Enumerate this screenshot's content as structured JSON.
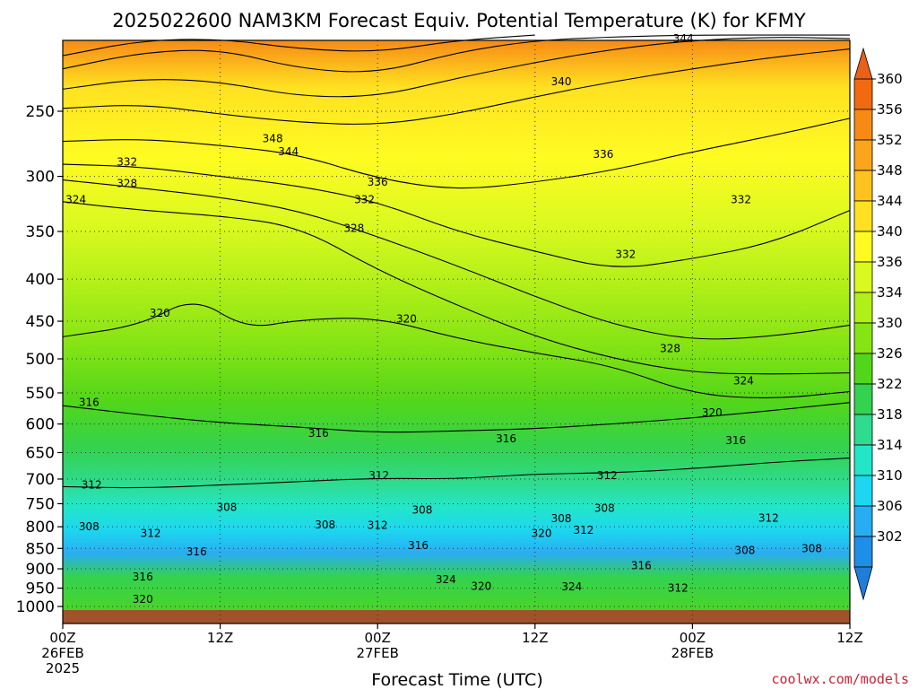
{
  "chart_data": {
    "type": "heatmap",
    "title": "2025022600 NAM3KM Forecast Equiv. Potential Temperature (K) for KFMY",
    "xlabel": "Forecast Time (UTC)",
    "ylabel": "",
    "x_unit": "hours since 00Z 26FEB 2025",
    "xlim": [
      0,
      60
    ],
    "ylim": [
      1030,
      200
    ],
    "y_scale": "log-pressure",
    "grid": true,
    "y_ticks": [
      {
        "value": 250,
        "label": "250"
      },
      {
        "value": 300,
        "label": "300"
      },
      {
        "value": 350,
        "label": "350"
      },
      {
        "value": 400,
        "label": "400"
      },
      {
        "value": 450,
        "label": "450"
      },
      {
        "value": 500,
        "label": "500"
      },
      {
        "value": 550,
        "label": "550"
      },
      {
        "value": 600,
        "label": "600"
      },
      {
        "value": 650,
        "label": "650"
      },
      {
        "value": 700,
        "label": "700"
      },
      {
        "value": 750,
        "label": "750"
      },
      {
        "value": 800,
        "label": "800"
      },
      {
        "value": 850,
        "label": "850"
      },
      {
        "value": 900,
        "label": "900"
      },
      {
        "value": 950,
        "label": "950"
      },
      {
        "value": 1000,
        "label": "1000"
      }
    ],
    "x_ticks": [
      {
        "hour": 0,
        "lines": [
          "00Z",
          "26FEB",
          "2025"
        ]
      },
      {
        "hour": 12,
        "lines": [
          "12Z"
        ]
      },
      {
        "hour": 24,
        "lines": [
          "00Z",
          "27FEB"
        ]
      },
      {
        "hour": 36,
        "lines": [
          "12Z"
        ]
      },
      {
        "hour": 48,
        "lines": [
          "00Z",
          "28FEB"
        ]
      },
      {
        "hour": 60,
        "lines": [
          "12Z"
        ]
      }
    ],
    "colorbar": {
      "labels": [
        "360",
        "356",
        "352",
        "348",
        "344",
        "340",
        "336",
        "334",
        "330",
        "326",
        "322",
        "318",
        "314",
        "310",
        "306",
        "302"
      ],
      "colors": [
        "#f26a10",
        "#f78a15",
        "#fba51c",
        "#ffc21f",
        "#ffe121",
        "#fffb22",
        "#d9f91f",
        "#b1ef18",
        "#86e414",
        "#52d61a",
        "#33d24f",
        "#2fdb8e",
        "#23e6c8",
        "#1cd7ef",
        "#29adf2",
        "#1e8fe8"
      ],
      "top_arrow_color": "#e8601a",
      "bottom_arrow_color": "#1e7fdb"
    },
    "ground_color": "#a0522d",
    "contour_series": [
      {
        "level": 312,
        "points": [
          [
            0,
            715
          ],
          [
            6,
            718
          ],
          [
            12,
            712
          ],
          [
            18,
            705
          ],
          [
            24,
            698
          ],
          [
            30,
            700
          ],
          [
            36,
            690
          ],
          [
            42,
            688
          ],
          [
            48,
            680
          ],
          [
            54,
            668
          ],
          [
            60,
            660
          ]
        ]
      },
      {
        "level": 316,
        "points": [
          [
            0,
            570
          ],
          [
            6,
            585
          ],
          [
            12,
            598
          ],
          [
            18,
            605
          ],
          [
            24,
            615
          ],
          [
            30,
            612
          ],
          [
            36,
            608
          ],
          [
            42,
            600
          ],
          [
            48,
            590
          ],
          [
            54,
            578
          ],
          [
            60,
            565
          ]
        ]
      },
      {
        "level": 320,
        "points": [
          [
            0,
            470
          ],
          [
            6,
            455
          ],
          [
            10,
            420
          ],
          [
            14,
            460
          ],
          [
            18,
            448
          ],
          [
            24,
            445
          ],
          [
            30,
            472
          ],
          [
            36,
            492
          ],
          [
            42,
            510
          ],
          [
            48,
            552
          ],
          [
            54,
            560
          ],
          [
            60,
            548
          ]
        ]
      },
      {
        "level": 324,
        "points": [
          [
            0,
            322
          ],
          [
            6,
            330
          ],
          [
            12,
            335
          ],
          [
            18,
            345
          ],
          [
            24,
            390
          ],
          [
            30,
            430
          ],
          [
            36,
            470
          ],
          [
            42,
            500
          ],
          [
            48,
            520
          ],
          [
            54,
            522
          ],
          [
            60,
            520
          ]
        ]
      },
      {
        "level": 328,
        "points": [
          [
            0,
            303
          ],
          [
            6,
            310
          ],
          [
            12,
            318
          ],
          [
            18,
            330
          ],
          [
            24,
            355
          ],
          [
            30,
            385
          ],
          [
            36,
            420
          ],
          [
            42,
            455
          ],
          [
            48,
            475
          ],
          [
            54,
            470
          ],
          [
            60,
            455
          ]
        ]
      },
      {
        "level": 332,
        "points": [
          [
            0,
            290
          ],
          [
            6,
            292
          ],
          [
            12,
            300
          ],
          [
            18,
            308
          ],
          [
            24,
            322
          ],
          [
            30,
            350
          ],
          [
            36,
            370
          ],
          [
            42,
            390
          ],
          [
            48,
            378
          ],
          [
            54,
            362
          ],
          [
            60,
            330
          ]
        ]
      },
      {
        "level": 336,
        "points": [
          [
            0,
            272
          ],
          [
            6,
            270
          ],
          [
            12,
            275
          ],
          [
            18,
            282
          ],
          [
            24,
            302
          ],
          [
            30,
            312
          ],
          [
            36,
            305
          ],
          [
            42,
            295
          ],
          [
            48,
            280
          ],
          [
            54,
            268
          ],
          [
            60,
            255
          ]
        ]
      },
      {
        "level": 340,
        "points": [
          [
            0,
            248
          ],
          [
            6,
            245
          ],
          [
            12,
            252
          ],
          [
            18,
            258
          ],
          [
            24,
            260
          ],
          [
            30,
            252
          ],
          [
            36,
            240
          ],
          [
            42,
            230
          ],
          [
            48,
            222
          ],
          [
            54,
            215
          ],
          [
            60,
            210
          ]
        ]
      },
      {
        "level": 344,
        "points": [
          [
            0,
            235
          ],
          [
            6,
            228
          ],
          [
            12,
            230
          ],
          [
            18,
            240
          ],
          [
            24,
            240
          ],
          [
            30,
            228
          ],
          [
            36,
            218
          ],
          [
            42,
            210
          ],
          [
            48,
            205
          ],
          [
            54,
            203
          ],
          [
            60,
            204
          ]
        ]
      },
      {
        "level": 348,
        "points": [
          [
            0,
            222
          ],
          [
            6,
            212
          ],
          [
            12,
            210
          ],
          [
            18,
            222
          ],
          [
            24,
            225
          ],
          [
            30,
            212
          ],
          [
            36,
            205
          ],
          [
            42,
            203
          ],
          [
            48,
            202
          ],
          [
            54,
            202
          ],
          [
            60,
            202
          ]
        ]
      },
      {
        "level": 352,
        "points": [
          [
            0,
            214
          ],
          [
            6,
            205
          ],
          [
            12,
            204
          ],
          [
            18,
            210
          ],
          [
            24,
            212
          ],
          [
            30,
            205
          ],
          [
            36,
            202
          ]
        ]
      }
    ],
    "contour_labels": [
      {
        "text": "344",
        "x": 47.3,
        "y": 204
      },
      {
        "text": "340",
        "x": 38.0,
        "y": 230
      },
      {
        "text": "348",
        "x": 16.0,
        "y": 270
      },
      {
        "text": "344",
        "x": 17.2,
        "y": 280
      },
      {
        "text": "336",
        "x": 41.2,
        "y": 282
      },
      {
        "text": "332",
        "x": 4.9,
        "y": 288
      },
      {
        "text": "336",
        "x": 24.0,
        "y": 305
      },
      {
        "text": "328",
        "x": 4.9,
        "y": 306
      },
      {
        "text": "324",
        "x": 1.0,
        "y": 320
      },
      {
        "text": "332",
        "x": 23.0,
        "y": 320
      },
      {
        "text": "332",
        "x": 51.7,
        "y": 320
      },
      {
        "text": "328",
        "x": 22.2,
        "y": 347
      },
      {
        "text": "332",
        "x": 42.9,
        "y": 373
      },
      {
        "text": "320",
        "x": 7.4,
        "y": 440
      },
      {
        "text": "320",
        "x": 26.2,
        "y": 447
      },
      {
        "text": "328",
        "x": 46.3,
        "y": 486
      },
      {
        "text": "324",
        "x": 51.9,
        "y": 532
      },
      {
        "text": "316",
        "x": 2.0,
        "y": 565
      },
      {
        "text": "320",
        "x": 49.5,
        "y": 581
      },
      {
        "text": "316",
        "x": 19.5,
        "y": 616
      },
      {
        "text": "316",
        "x": 33.8,
        "y": 625
      },
      {
        "text": "316",
        "x": 51.3,
        "y": 628
      },
      {
        "text": "312",
        "x": 2.2,
        "y": 712
      },
      {
        "text": "312",
        "x": 24.1,
        "y": 693
      },
      {
        "text": "312",
        "x": 41.5,
        "y": 693
      },
      {
        "text": "308",
        "x": 12.5,
        "y": 758
      },
      {
        "text": "308",
        "x": 27.4,
        "y": 763
      },
      {
        "text": "308",
        "x": 41.3,
        "y": 760
      },
      {
        "text": "312",
        "x": 53.8,
        "y": 781
      },
      {
        "text": "308",
        "x": 2.0,
        "y": 800
      },
      {
        "text": "308",
        "x": 20.0,
        "y": 796
      },
      {
        "text": "312",
        "x": 24.0,
        "y": 797
      },
      {
        "text": "308",
        "x": 38.0,
        "y": 782
      },
      {
        "text": "312",
        "x": 6.7,
        "y": 815
      },
      {
        "text": "320",
        "x": 36.5,
        "y": 815
      },
      {
        "text": "312",
        "x": 39.7,
        "y": 808
      },
      {
        "text": "316",
        "x": 27.1,
        "y": 843
      },
      {
        "text": "316",
        "x": 10.2,
        "y": 858
      },
      {
        "text": "308",
        "x": 52.0,
        "y": 855
      },
      {
        "text": "308",
        "x": 57.1,
        "y": 850
      },
      {
        "text": "316",
        "x": 44.1,
        "y": 892
      },
      {
        "text": "316",
        "x": 6.1,
        "y": 920
      },
      {
        "text": "324",
        "x": 29.2,
        "y": 928
      },
      {
        "text": "320",
        "x": 31.9,
        "y": 945
      },
      {
        "text": "324",
        "x": 38.8,
        "y": 946
      },
      {
        "text": "312",
        "x": 46.9,
        "y": 950
      },
      {
        "text": "320",
        "x": 6.1,
        "y": 980
      }
    ]
  },
  "credit": "coolwx.com/models"
}
